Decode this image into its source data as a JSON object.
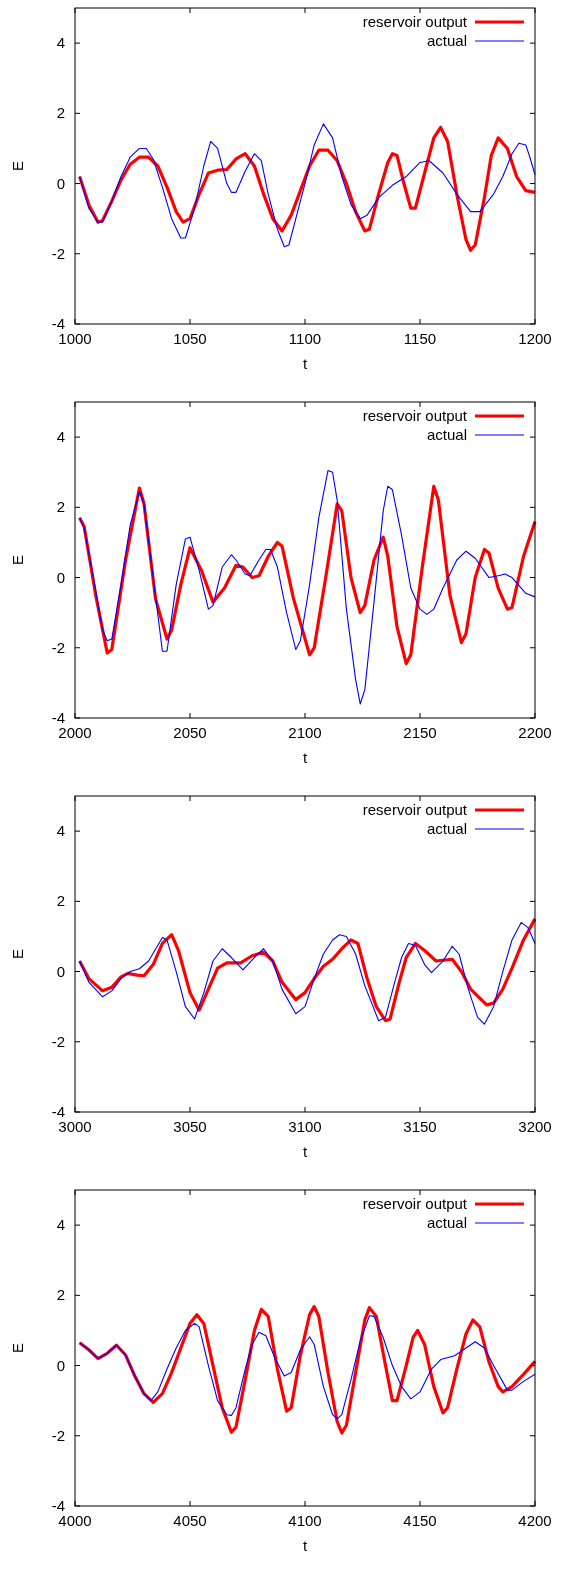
{
  "chart_data": [
    {
      "type": "line",
      "xlabel": "t",
      "ylabel": "E",
      "xlim": [
        1000,
        1200
      ],
      "xticks": [
        1000,
        1050,
        1100,
        1150,
        1200
      ],
      "ylim": [
        -4,
        5
      ],
      "yticks": [
        -4,
        -2,
        0,
        2,
        4
      ],
      "legend": "top right",
      "grid": false,
      "series": [
        {
          "name": "reservoir output",
          "color": "#ff0000",
          "x": [
            1002,
            1006,
            1010,
            1012,
            1016,
            1020,
            1024,
            1028,
            1032,
            1036,
            1040,
            1044,
            1047,
            1050,
            1054,
            1058,
            1062,
            1066,
            1070,
            1074,
            1078,
            1082,
            1086,
            1090,
            1094,
            1098,
            1102,
            1106,
            1110,
            1114,
            1118,
            1122,
            1126,
            1128,
            1132,
            1136,
            1138,
            1140,
            1143,
            1146,
            1148,
            1152,
            1156,
            1159,
            1162,
            1166,
            1170,
            1172,
            1174,
            1178,
            1181,
            1184,
            1188,
            1192,
            1196,
            1200
          ],
          "values": [
            0.2,
            -0.6,
            -1.1,
            -1.05,
            -0.5,
            0.1,
            0.55,
            0.75,
            0.75,
            0.5,
            -0.1,
            -0.8,
            -1.1,
            -1.0,
            -0.3,
            0.3,
            0.38,
            0.4,
            0.7,
            0.85,
            0.5,
            -0.3,
            -1.0,
            -1.35,
            -0.9,
            -0.2,
            0.5,
            0.95,
            0.95,
            0.65,
            0.0,
            -0.8,
            -1.35,
            -1.3,
            -0.3,
            0.6,
            0.85,
            0.8,
            0.0,
            -0.7,
            -0.7,
            0.3,
            1.3,
            1.6,
            1.2,
            -0.3,
            -1.6,
            -1.9,
            -1.75,
            -0.4,
            0.8,
            1.3,
            1.0,
            0.2,
            -0.2,
            -0.25
          ]
        },
        {
          "name": "actual",
          "color": "#0000ff",
          "x": [
            1002,
            1006,
            1010,
            1012,
            1016,
            1020,
            1024,
            1028,
            1031,
            1034,
            1038,
            1042,
            1046,
            1048,
            1052,
            1056,
            1059,
            1062,
            1066,
            1068,
            1070,
            1074,
            1078,
            1081,
            1084,
            1088,
            1091,
            1093,
            1097,
            1100,
            1104,
            1108,
            1112,
            1116,
            1120,
            1124,
            1127,
            1132,
            1138,
            1144,
            1150,
            1154,
            1160,
            1166,
            1172,
            1176,
            1182,
            1186,
            1190,
            1193,
            1196,
            1198,
            1200
          ],
          "values": [
            0.2,
            -0.7,
            -1.1,
            -1.1,
            -0.5,
            0.2,
            0.75,
            1.0,
            1.0,
            0.7,
            -0.1,
            -1.0,
            -1.55,
            -1.55,
            -0.7,
            0.5,
            1.2,
            1.0,
            0.0,
            -0.25,
            -0.25,
            0.35,
            0.85,
            0.65,
            -0.3,
            -1.3,
            -1.8,
            -1.75,
            -0.75,
            0.0,
            1.1,
            1.7,
            1.3,
            0.2,
            -0.6,
            -1.0,
            -0.9,
            -0.4,
            -0.05,
            0.2,
            0.6,
            0.65,
            0.3,
            -0.3,
            -0.8,
            -0.8,
            -0.3,
            0.2,
            0.85,
            1.15,
            1.1,
            0.7,
            0.25
          ]
        }
      ]
    },
    {
      "type": "line",
      "xlabel": "t",
      "ylabel": "E",
      "xlim": [
        2000,
        2200
      ],
      "xticks": [
        2000,
        2050,
        2100,
        2150,
        2200
      ],
      "ylim": [
        -4,
        5
      ],
      "yticks": [
        -4,
        -2,
        0,
        2,
        4
      ],
      "legend": "top right",
      "grid": false,
      "series": [
        {
          "name": "reservoir output",
          "color": "#ff0000",
          "x": [
            2002,
            2004,
            2009,
            2014,
            2016,
            2022,
            2028,
            2030,
            2035,
            2040,
            2042,
            2046,
            2050,
            2055,
            2060,
            2065,
            2070,
            2073,
            2077,
            2080,
            2084,
            2088,
            2090,
            2095,
            2102,
            2104,
            2109,
            2114,
            2116,
            2120,
            2124,
            2126,
            2130,
            2134,
            2136,
            2140,
            2144,
            2146,
            2151,
            2156,
            2158,
            2163,
            2168,
            2170,
            2174,
            2178,
            2180,
            2184,
            2188,
            2190,
            2195,
            2200
          ],
          "values": [
            1.7,
            1.45,
            -0.5,
            -2.15,
            -2.05,
            0.5,
            2.55,
            2.1,
            -0.6,
            -1.75,
            -1.5,
            -0.2,
            0.85,
            0.2,
            -0.7,
            -0.3,
            0.35,
            0.3,
            0.0,
            0.05,
            0.6,
            1.0,
            0.9,
            -0.6,
            -2.2,
            -2.0,
            0.0,
            2.1,
            1.9,
            0.0,
            -1.0,
            -0.8,
            0.5,
            1.15,
            0.6,
            -1.4,
            -2.45,
            -2.2,
            0.3,
            2.6,
            2.2,
            -0.5,
            -1.85,
            -1.6,
            0.0,
            0.8,
            0.7,
            -0.3,
            -0.9,
            -0.85,
            0.6,
            1.6
          ]
        },
        {
          "name": "actual",
          "color": "#0000ff",
          "x": [
            2002,
            2004,
            2008,
            2012,
            2014,
            2016,
            2020,
            2024,
            2028,
            2030,
            2034,
            2038,
            2040,
            2044,
            2048,
            2050,
            2054,
            2058,
            2060,
            2064,
            2068,
            2070,
            2074,
            2076,
            2080,
            2083,
            2085,
            2088,
            2092,
            2096,
            2098,
            2102,
            2106,
            2110,
            2112,
            2114,
            2118,
            2122,
            2124,
            2126,
            2130,
            2134,
            2136,
            2138,
            2142,
            2146,
            2150,
            2153,
            2156,
            2160,
            2166,
            2170,
            2174,
            2180,
            2184,
            2187,
            2190,
            2196,
            2200
          ],
          "values": [
            1.7,
            1.4,
            0.0,
            -1.5,
            -1.8,
            -1.75,
            -0.2,
            1.5,
            2.45,
            2.1,
            0.0,
            -2.1,
            -2.1,
            -0.2,
            1.1,
            1.15,
            0.2,
            -0.9,
            -0.8,
            0.3,
            0.65,
            0.5,
            0.1,
            0.05,
            0.5,
            0.8,
            0.8,
            0.3,
            -1.0,
            -2.05,
            -1.8,
            -0.2,
            1.7,
            3.05,
            3.0,
            2.2,
            -0.9,
            -2.9,
            -3.6,
            -3.2,
            -0.7,
            1.9,
            2.6,
            2.5,
            1.2,
            -0.3,
            -0.9,
            -1.05,
            -0.9,
            -0.3,
            0.5,
            0.75,
            0.55,
            0.0,
            0.05,
            0.1,
            0.0,
            -0.45,
            -0.55
          ]
        }
      ]
    },
    {
      "type": "line",
      "xlabel": "t",
      "ylabel": "E",
      "xlim": [
        3000,
        3200
      ],
      "xticks": [
        3000,
        3050,
        3100,
        3150,
        3200
      ],
      "ylim": [
        -4,
        5
      ],
      "yticks": [
        -4,
        -2,
        0,
        2,
        4
      ],
      "legend": "top right",
      "grid": false,
      "series": [
        {
          "name": "reservoir output",
          "color": "#ff0000",
          "x": [
            3002,
            3006,
            3012,
            3016,
            3020,
            3023,
            3027,
            3030,
            3034,
            3038,
            3042,
            3045,
            3050,
            3054,
            3058,
            3062,
            3066,
            3072,
            3077,
            3082,
            3086,
            3090,
            3096,
            3100,
            3104,
            3108,
            3112,
            3116,
            3120,
            3123,
            3127,
            3131,
            3135,
            3137,
            3141,
            3144,
            3148,
            3152,
            3157,
            3164,
            3168,
            3172,
            3179,
            3182,
            3186,
            3190,
            3195,
            3200
          ],
          "values": [
            0.3,
            -0.2,
            -0.55,
            -0.45,
            -0.15,
            -0.05,
            -0.1,
            -0.12,
            0.2,
            0.8,
            1.05,
            0.6,
            -0.6,
            -1.1,
            -0.5,
            0.1,
            0.25,
            0.25,
            0.45,
            0.55,
            0.3,
            -0.3,
            -0.8,
            -0.6,
            -0.2,
            0.15,
            0.35,
            0.65,
            0.9,
            0.8,
            -0.2,
            -1.0,
            -1.4,
            -1.35,
            -0.3,
            0.4,
            0.8,
            0.6,
            0.3,
            0.35,
            0.0,
            -0.5,
            -0.95,
            -0.9,
            -0.5,
            0.1,
            0.9,
            1.5
          ]
        },
        {
          "name": "actual",
          "color": "#0000ff",
          "x": [
            3002,
            3006,
            3012,
            3016,
            3020,
            3024,
            3028,
            3032,
            3038,
            3040,
            3044,
            3048,
            3052,
            3056,
            3060,
            3064,
            3068,
            3073,
            3078,
            3082,
            3086,
            3090,
            3096,
            3100,
            3104,
            3108,
            3112,
            3115,
            3118,
            3122,
            3126,
            3132,
            3135,
            3139,
            3142,
            3145,
            3148,
            3152,
            3155,
            3160,
            3164,
            3167,
            3171,
            3175,
            3178,
            3182,
            3186,
            3190,
            3194,
            3197,
            3200
          ],
          "values": [
            0.3,
            -0.3,
            -0.72,
            -0.55,
            -0.2,
            0.0,
            0.08,
            0.3,
            0.97,
            0.9,
            0.0,
            -1.0,
            -1.35,
            -0.6,
            0.3,
            0.65,
            0.4,
            0.05,
            0.4,
            0.65,
            0.3,
            -0.5,
            -1.2,
            -1.0,
            -0.2,
            0.5,
            0.9,
            1.05,
            1.0,
            0.5,
            -0.4,
            -1.4,
            -1.3,
            -0.3,
            0.4,
            0.8,
            0.75,
            0.2,
            -0.03,
            0.3,
            0.72,
            0.5,
            -0.5,
            -1.3,
            -1.5,
            -1.0,
            0.0,
            0.9,
            1.4,
            1.25,
            0.8
          ]
        }
      ]
    },
    {
      "type": "line",
      "xlabel": "t",
      "ylabel": "E",
      "xlim": [
        4000,
        4200
      ],
      "xticks": [
        4000,
        4050,
        4100,
        4150,
        4200
      ],
      "ylim": [
        -4,
        5
      ],
      "yticks": [
        -4,
        -2,
        0,
        2,
        4
      ],
      "legend": "top right",
      "grid": false,
      "series": [
        {
          "name": "reservoir output",
          "color": "#ff0000",
          "x": [
            4002,
            4006,
            4010,
            4014,
            4018,
            4022,
            4026,
            4030,
            4034,
            4038,
            4042,
            4046,
            4050,
            4053,
            4056,
            4060,
            4064,
            4068,
            4070,
            4074,
            4078,
            4081,
            4084,
            4088,
            4092,
            4094,
            4098,
            4102,
            4104,
            4106,
            4110,
            4114,
            4116,
            4118,
            4122,
            4126,
            4128,
            4131,
            4135,
            4138,
            4140,
            4144,
            4147,
            4149,
            4152,
            4156,
            4160,
            4162,
            4166,
            4170,
            4173,
            4176,
            4180,
            4184,
            4186,
            4190,
            4195,
            4200
          ],
          "values": [
            0.65,
            0.45,
            0.2,
            0.35,
            0.58,
            0.3,
            -0.3,
            -0.8,
            -1.05,
            -0.8,
            -0.2,
            0.5,
            1.2,
            1.45,
            1.2,
            0.0,
            -1.2,
            -1.9,
            -1.75,
            -0.4,
            1.0,
            1.6,
            1.4,
            -0.1,
            -1.3,
            -1.2,
            0.3,
            1.45,
            1.68,
            1.4,
            -0.2,
            -1.6,
            -1.92,
            -1.7,
            -0.2,
            1.3,
            1.65,
            1.4,
            0.0,
            -1.0,
            -1.0,
            0.0,
            0.8,
            1.0,
            0.6,
            -0.6,
            -1.35,
            -1.2,
            -0.1,
            0.9,
            1.3,
            1.1,
            0.1,
            -0.6,
            -0.75,
            -0.6,
            -0.25,
            0.12
          ]
        },
        {
          "name": "actual",
          "color": "#0000ff",
          "x": [
            4002,
            4006,
            4010,
            4014,
            4018,
            4022,
            4026,
            4030,
            4033,
            4036,
            4040,
            4044,
            4048,
            4052,
            4054,
            4058,
            4062,
            4066,
            4068,
            4070,
            4074,
            4077,
            4080,
            4083,
            4087,
            4091,
            4094,
            4098,
            4102,
            4104,
            4108,
            4112,
            4114,
            4116,
            4120,
            4124,
            4128,
            4130,
            4134,
            4138,
            4142,
            4146,
            4150,
            4155,
            4159,
            4165,
            4170,
            4174,
            4178,
            4182,
            4188,
            4190,
            4195,
            4200
          ],
          "values": [
            0.65,
            0.45,
            0.2,
            0.35,
            0.58,
            0.3,
            -0.3,
            -0.8,
            -1.0,
            -0.75,
            -0.1,
            0.5,
            1.0,
            1.2,
            1.1,
            0.0,
            -1.0,
            -1.4,
            -1.42,
            -1.2,
            -0.1,
            0.6,
            0.95,
            0.85,
            0.2,
            -0.3,
            -0.2,
            0.45,
            0.82,
            0.6,
            -0.6,
            -1.4,
            -1.52,
            -1.4,
            -0.4,
            0.7,
            1.42,
            1.4,
            0.8,
            0.0,
            -0.6,
            -0.95,
            -0.75,
            -0.1,
            0.17,
            0.28,
            0.5,
            0.68,
            0.5,
            0.0,
            -0.7,
            -0.7,
            -0.45,
            -0.25
          ]
        }
      ]
    }
  ]
}
